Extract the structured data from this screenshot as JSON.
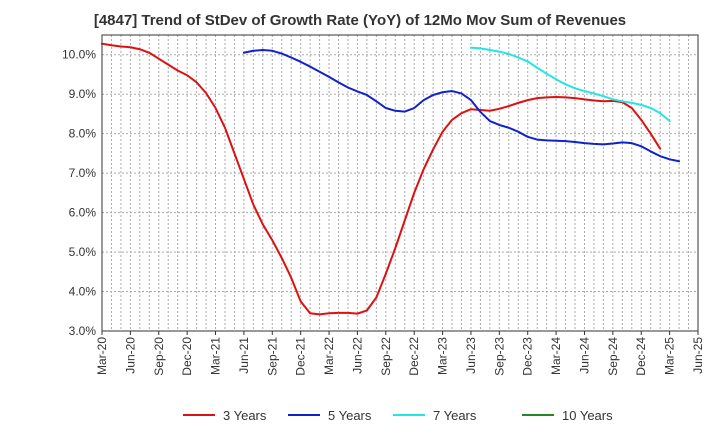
{
  "chart_data": {
    "type": "line",
    "title": "[4847]  Trend of StDev of Growth Rate (YoY) of 12Mo Mov Sum of Revenues",
    "xlabel": "",
    "ylabel": "",
    "ylim": [
      3.0,
      10.5
    ],
    "yticks": [
      3.0,
      4.0,
      5.0,
      6.0,
      7.0,
      8.0,
      9.0,
      10.0
    ],
    "ytick_labels": [
      "3.0%",
      "4.0%",
      "5.0%",
      "6.0%",
      "7.0%",
      "8.0%",
      "9.0%",
      "10.0%"
    ],
    "x_tick_labels": [
      "Mar-20",
      "Jun-20",
      "Sep-20",
      "Dec-20",
      "Mar-21",
      "Jun-21",
      "Sep-21",
      "Dec-21",
      "Mar-22",
      "Jun-22",
      "Sep-22",
      "Dec-22",
      "Mar-23",
      "Jun-23",
      "Sep-23",
      "Dec-23",
      "Mar-24",
      "Jun-24",
      "Sep-24",
      "Dec-24",
      "Mar-25",
      "Jun-25"
    ],
    "x_month_range": [
      0,
      63
    ],
    "grid": true,
    "legend_position": "bottom",
    "series": [
      {
        "name": "3 Years",
        "color": "#dd1111",
        "start_month": 0,
        "values": [
          10.28,
          10.24,
          10.21,
          10.19,
          10.14,
          10.05,
          9.9,
          9.75,
          9.6,
          9.48,
          9.3,
          9.03,
          8.65,
          8.15,
          7.5,
          6.85,
          6.2,
          5.7,
          5.3,
          4.85,
          4.35,
          3.75,
          3.45,
          3.42,
          3.45,
          3.46,
          3.46,
          3.44,
          3.52,
          3.85,
          4.45,
          5.1,
          5.8,
          6.5,
          7.1,
          7.6,
          8.05,
          8.35,
          8.52,
          8.62,
          8.6,
          8.58,
          8.63,
          8.7,
          8.78,
          8.85,
          8.9,
          8.92,
          8.93,
          8.92,
          8.9,
          8.87,
          8.84,
          8.82,
          8.83,
          8.8,
          8.65,
          8.35,
          8.0,
          7.62
        ]
      },
      {
        "name": "5 Years",
        "color": "#1122cc",
        "start_month": 15,
        "values": [
          10.05,
          10.1,
          10.12,
          10.1,
          10.03,
          9.93,
          9.82,
          9.7,
          9.57,
          9.44,
          9.3,
          9.17,
          9.07,
          8.98,
          8.82,
          8.65,
          8.58,
          8.56,
          8.65,
          8.85,
          8.98,
          9.05,
          9.08,
          9.02,
          8.85,
          8.55,
          8.32,
          8.22,
          8.15,
          8.05,
          7.92,
          7.85,
          7.83,
          7.82,
          7.81,
          7.79,
          7.76,
          7.74,
          7.73,
          7.75,
          7.78,
          7.76,
          7.68,
          7.55,
          7.43,
          7.35,
          7.3
        ]
      },
      {
        "name": "7 Years",
        "color": "#22e5e5",
        "start_month": 39,
        "values": [
          10.18,
          10.16,
          10.12,
          10.08,
          10.02,
          9.93,
          9.83,
          9.67,
          9.52,
          9.38,
          9.25,
          9.15,
          9.08,
          9.02,
          8.95,
          8.87,
          8.82,
          8.78,
          8.73,
          8.65,
          8.52,
          8.32
        ]
      },
      {
        "name": "10 Years",
        "color": "#228822",
        "start_month": 0,
        "values": []
      }
    ]
  }
}
